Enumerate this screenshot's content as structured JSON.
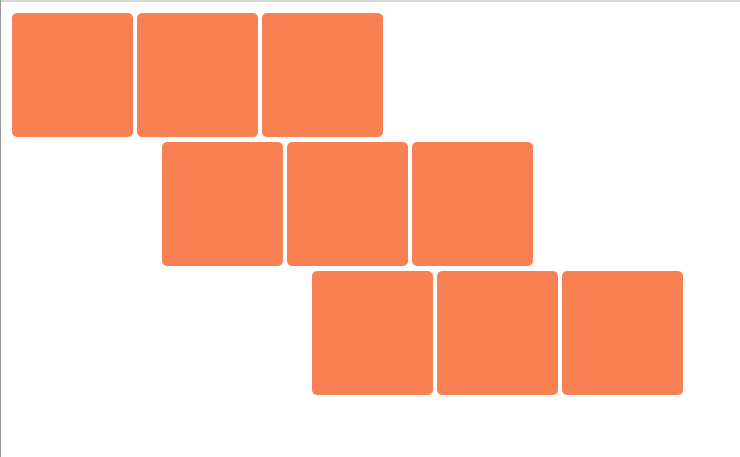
{
  "theme": {
    "background": "#ffffff",
    "tile_color": "#f98052",
    "edge_color": "#9a9a9a"
  },
  "tiles": [
    {
      "row": 1,
      "col": 1
    },
    {
      "row": 1,
      "col": 2
    },
    {
      "row": 1,
      "col": 3
    },
    {
      "row": 2,
      "col": 2
    },
    {
      "row": 2,
      "col": 3
    },
    {
      "row": 2,
      "col": 4
    },
    {
      "row": 3,
      "col": 3
    },
    {
      "row": 3,
      "col": 4
    },
    {
      "row": 3,
      "col": 5
    }
  ]
}
